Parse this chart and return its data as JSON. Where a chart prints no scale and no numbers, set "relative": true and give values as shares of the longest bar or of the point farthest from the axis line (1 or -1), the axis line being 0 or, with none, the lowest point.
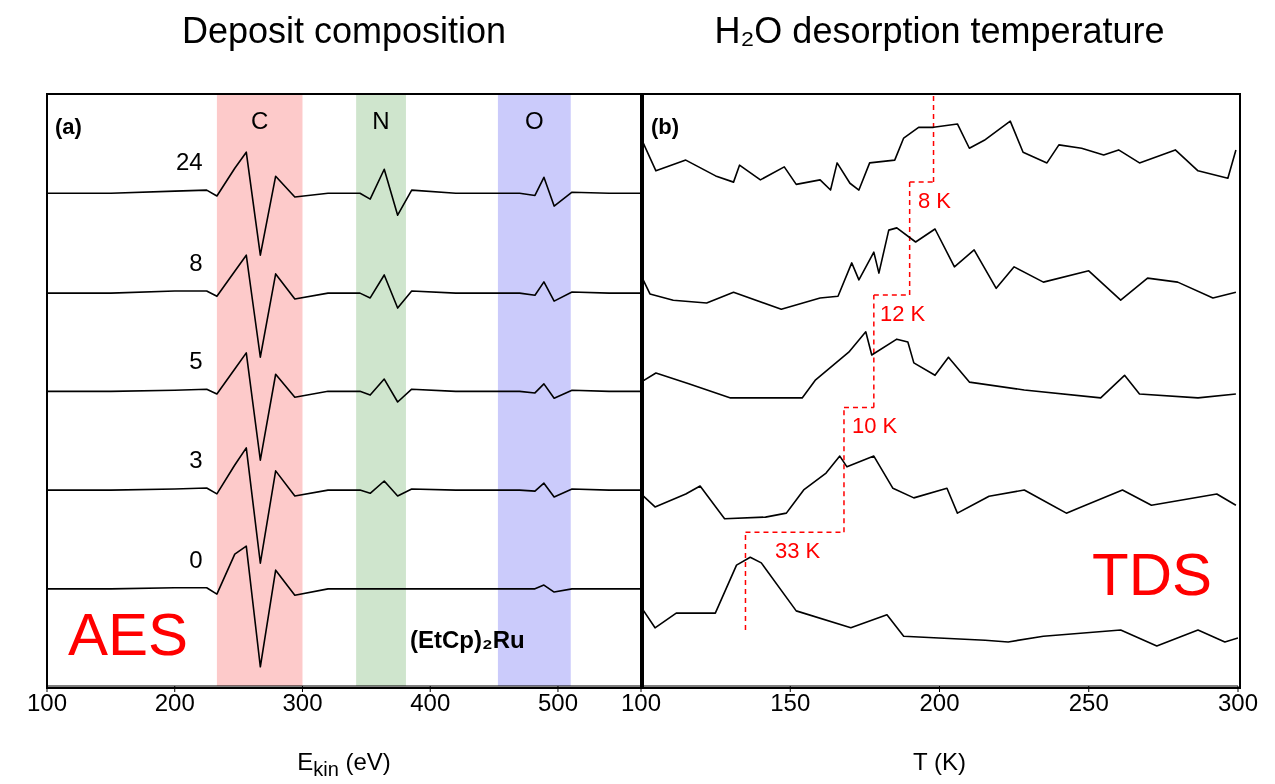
{
  "chart_data": [
    {
      "type": "line",
      "title": "Deposit composition",
      "xlabel": "E$_{kin}$ (eV)",
      "relative": true,
      "xlim": [
        100,
        565
      ],
      "xticks": [
        100,
        200,
        300,
        400,
        500
      ],
      "x": [
        100,
        150,
        200,
        225,
        233,
        247,
        256,
        267,
        279,
        294,
        320,
        345,
        353,
        364,
        374.5,
        385.5,
        420,
        470,
        482,
        489,
        497,
        511,
        540,
        565
      ],
      "series": [
        {
          "name": "24",
          "color": "#000000",
          "values": [
            0.923,
            0.923,
            0.927,
            0.929,
            0.918,
            0.97,
            1,
            0.807,
            0.955,
            0.916,
            0.923,
            0.923,
            0.912,
            0.968,
            0.882,
            0.929,
            0.923,
            0.923,
            0.919,
            0.953,
            0.899,
            0.925,
            0.923,
            0.923
          ]
        },
        {
          "name": "8",
          "color": "#000000",
          "values": [
            0.736,
            0.736,
            0.74,
            0.74,
            0.73,
            0.777,
            0.807,
            0.616,
            0.772,
            0.725,
            0.736,
            0.736,
            0.727,
            0.77,
            0.708,
            0.74,
            0.736,
            0.736,
            0.732,
            0.757,
            0.721,
            0.738,
            0.736,
            0.736
          ]
        },
        {
          "name": "5",
          "color": "#000000",
          "values": [
            0.552,
            0.552,
            0.554,
            0.556,
            0.547,
            0.594,
            0.624,
            0.423,
            0.584,
            0.541,
            0.552,
            0.552,
            0.545,
            0.575,
            0.532,
            0.556,
            0.552,
            0.552,
            0.549,
            0.566,
            0.539,
            0.554,
            0.552,
            0.552
          ]
        },
        {
          "name": "3",
          "color": "#000000",
          "values": [
            0.367,
            0.367,
            0.369,
            0.371,
            0.36,
            0.414,
            0.446,
            0.23,
            0.403,
            0.356,
            0.367,
            0.367,
            0.361,
            0.384,
            0.356,
            0.369,
            0.367,
            0.367,
            0.365,
            0.38,
            0.354,
            0.369,
            0.367,
            0.367
          ]
        },
        {
          "name": "0",
          "color": "#000000",
          "values": [
            0.182,
            0.182,
            0.184,
            0.184,
            0.172,
            0.247,
            0.262,
            0.036,
            0.217,
            0.17,
            0.182,
            0.182,
            0.182,
            0.182,
            0.182,
            0.182,
            0.182,
            0.182,
            0.182,
            0.189,
            0.176,
            0.182,
            0.182,
            0.182
          ]
        }
      ],
      "bands": [
        {
          "axis": "x",
          "from": 233,
          "to": 300,
          "label": "C",
          "color": "#fdcaca"
        },
        {
          "axis": "x",
          "from": 342,
          "to": 381,
          "label": "N",
          "color": "#cfe5cd"
        },
        {
          "axis": "x",
          "from": 453,
          "to": 510,
          "label": "O",
          "color": "#cbcbfb"
        }
      ],
      "annotations": [
        "(a)",
        "AES",
        "(EtCp)₂Ru"
      ]
    },
    {
      "type": "line",
      "title": "H₂O desorption temperature",
      "xlabel": "T (K)",
      "relative": true,
      "xlim": [
        100,
        300
      ],
      "xticks": [
        100,
        150,
        200,
        250,
        300
      ],
      "series": [
        {
          "color": "#000000",
          "x": [
            100,
            105,
            115,
            125,
            131,
            133,
            140,
            148,
            152,
            160,
            163.5,
            165.7,
            170,
            173,
            176.6,
            185,
            188,
            193,
            198,
            206,
            210,
            215,
            223.7,
            228,
            236,
            240,
            247.6,
            255,
            260,
            267,
            279,
            286.6,
            296.6,
            299.3
          ],
          "values": [
            0.97,
            0.912,
            0.931,
            0.903,
            0.892,
            0.922,
            0.896,
            0.919,
            0.888,
            0.896,
            0.878,
            0.926,
            0.89,
            0.878,
            0.926,
            0.931,
            0.97,
            0.989,
            0.989,
            0.995,
            0.952,
            0.966,
            1,
            0.945,
            0.926,
            0.958,
            0.952,
            0.94,
            0.949,
            0.926,
            0.949,
            0.912,
            0.899,
            0.949
          ]
        },
        {
          "color": "#000000",
          "x": [
            100,
            103,
            110.8,
            122,
            131,
            147,
            160,
            166,
            170.6,
            173,
            178,
            179.7,
            183,
            185.7,
            192,
            198.5,
            205,
            211.6,
            219,
            225,
            234.8,
            250,
            260.7,
            269.7,
            279.8,
            291.6,
            299.3
          ],
          "values": [
            0.727,
            0.694,
            0.683,
            0.678,
            0.697,
            0.667,
            0.687,
            0.69,
            0.749,
            0.719,
            0.768,
            0.731,
            0.807,
            0.811,
            0.786,
            0.809,
            0.742,
            0.772,
            0.704,
            0.742,
            0.715,
            0.735,
            0.683,
            0.722,
            0.715,
            0.687,
            0.697
          ]
        },
        {
          "color": "#000000",
          "x": [
            100,
            105,
            116,
            130,
            138,
            154,
            158.5,
            169.6,
            175.3,
            177.3,
            185.7,
            189.4,
            191.4,
            198.5,
            203,
            210,
            228.4,
            254,
            262,
            267,
            286.6,
            299.3
          ],
          "values": [
            0.538,
            0.554,
            0.535,
            0.51,
            0.51,
            0.51,
            0.542,
            0.591,
            0.627,
            0.586,
            0.614,
            0.609,
            0.572,
            0.55,
            0.582,
            0.538,
            0.524,
            0.51,
            0.55,
            0.517,
            0.51,
            0.517
          ]
        },
        {
          "color": "#000000",
          "x": [
            100,
            104.7,
            115,
            119.8,
            128,
            141.7,
            148.7,
            154.5,
            162,
            166.6,
            169,
            178,
            184.4,
            191.4,
            202.5,
            206,
            216.6,
            228.4,
            242.5,
            261.3,
            271,
            292.9,
            299.3
          ],
          "values": [
            0.34,
            0.317,
            0.34,
            0.354,
            0.296,
            0.299,
            0.306,
            0.347,
            0.377,
            0.407,
            0.388,
            0.407,
            0.35,
            0.333,
            0.35,
            0.306,
            0.336,
            0.347,
            0.306,
            0.347,
            0.32,
            0.34,
            0.32
          ]
        },
        {
          "color": "#000000",
          "x": [
            100,
            104.7,
            111.8,
            124.9,
            132,
            136.6,
            140.3,
            152,
            170.3,
            182.4,
            188,
            199.8,
            215.3,
            223,
            234.8,
            260.7,
            272.8,
            286.6,
            295.6,
            300
          ],
          "values": [
            0.14,
            0.103,
            0.129,
            0.129,
            0.214,
            0.228,
            0.218,
            0.133,
            0.103,
            0.126,
            0.088,
            0.085,
            0.081,
            0.078,
            0.088,
            0.099,
            0.071,
            0.099,
            0.078,
            0.085
          ]
        }
      ],
      "ref_lines": [
        {
          "axis": "x",
          "value": 135,
          "color": "#ff0000",
          "line_style": "dashed"
        },
        {
          "axis": "x",
          "value": 168,
          "color": "#ff0000",
          "line_style": "dashed"
        },
        {
          "axis": "x",
          "value": 178,
          "color": "#ff0000",
          "line_style": "dashed"
        },
        {
          "axis": "x",
          "value": 190,
          "color": "#ff0000",
          "line_style": "dashed"
        },
        {
          "axis": "x",
          "value": 198,
          "color": "#ff0000",
          "line_style": "dashed"
        }
      ],
      "annotations": [
        "(b)",
        "TDS",
        "33 K",
        "10 K",
        "12 K",
        "8 K"
      ]
    }
  ]
}
